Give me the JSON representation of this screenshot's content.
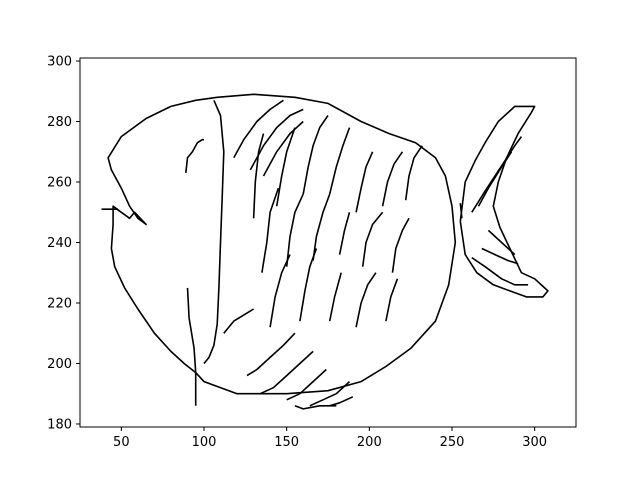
{
  "chart_data": {
    "type": "line",
    "title": "",
    "xlabel": "",
    "ylabel": "",
    "xlim": [
      25,
      325
    ],
    "ylim": [
      179,
      301
    ],
    "x_ticks": [
      50,
      100,
      150,
      200,
      250,
      300
    ],
    "y_ticks": [
      180,
      200,
      220,
      240,
      260,
      280,
      300
    ],
    "grid": false,
    "legend": "none",
    "line_color": "#000000",
    "series": [
      {
        "points": [
          [
            95,
            197
          ],
          [
            100,
            194
          ],
          [
            120,
            190
          ],
          [
            150,
            190
          ],
          [
            175,
            191
          ],
          [
            195,
            194
          ],
          [
            210,
            199
          ],
          [
            225,
            205
          ],
          [
            240,
            214
          ],
          [
            248,
            226
          ],
          [
            252,
            240
          ],
          [
            250,
            252
          ],
          [
            246,
            262
          ],
          [
            240,
            268
          ],
          [
            228,
            273
          ],
          [
            212,
            276
          ],
          [
            195,
            280
          ],
          [
            175,
            286
          ],
          [
            155,
            288
          ],
          [
            130,
            289
          ],
          [
            108,
            288
          ],
          [
            95,
            287
          ],
          [
            80,
            285
          ],
          [
            65,
            281
          ],
          [
            50,
            275
          ],
          [
            42,
            268
          ],
          [
            44,
            264
          ],
          [
            50,
            258
          ],
          [
            55,
            252
          ],
          [
            60,
            248
          ],
          [
            65,
            246
          ],
          [
            58,
            250
          ],
          [
            55,
            248
          ],
          [
            50,
            250
          ],
          [
            45,
            252
          ],
          [
            45,
            246
          ],
          [
            44,
            238
          ],
          [
            46,
            232
          ],
          [
            52,
            225
          ],
          [
            60,
            218
          ],
          [
            70,
            210
          ],
          [
            80,
            204
          ],
          [
            88,
            200
          ],
          [
            95,
            197
          ]
        ]
      },
      {
        "points": [
          [
            106,
            287
          ],
          [
            110,
            282
          ],
          [
            112,
            270
          ],
          [
            111,
            255
          ],
          [
            110,
            240
          ],
          [
            109,
            225
          ],
          [
            108,
            213
          ],
          [
            106,
            206
          ],
          [
            103,
            202
          ],
          [
            100,
            200
          ]
        ]
      },
      {
        "points": [
          [
            38,
            251
          ],
          [
            48,
            251
          ]
        ]
      },
      {
        "points": [
          [
            89,
            263
          ],
          [
            90,
            268
          ],
          [
            93,
            270
          ],
          [
            96,
            273
          ],
          [
            99,
            274
          ],
          [
            100,
            274
          ]
        ]
      },
      {
        "points": [
          [
            90,
            225
          ],
          [
            91,
            215
          ],
          [
            94,
            205
          ],
          [
            95,
            197
          ],
          [
            95,
            188
          ],
          [
            95,
            186
          ]
        ]
      },
      {
        "points": [
          [
            255,
            247
          ],
          [
            258,
            260
          ],
          [
            264,
            267
          ],
          [
            270,
            273
          ],
          [
            278,
            280
          ],
          [
            288,
            285
          ],
          [
            300,
            285
          ],
          [
            298,
            283
          ],
          [
            290,
            276
          ],
          [
            283,
            268
          ],
          [
            278,
            260
          ],
          [
            275,
            252
          ],
          [
            279,
            245
          ],
          [
            285,
            238
          ],
          [
            292,
            230
          ],
          [
            300,
            228
          ],
          [
            308,
            224
          ],
          [
            305,
            222
          ],
          [
            295,
            222
          ],
          [
            285,
            224
          ],
          [
            275,
            226
          ],
          [
            265,
            230
          ],
          [
            258,
            236
          ],
          [
            255,
            247
          ]
        ]
      },
      {
        "points": [
          [
            255,
            253
          ],
          [
            256,
            248
          ]
        ]
      },
      {
        "points": [
          [
            262,
            250
          ],
          [
            270,
            257
          ],
          [
            276,
            262
          ],
          [
            282,
            267
          ],
          [
            288,
            272
          ],
          [
            292,
            275
          ]
        ]
      },
      {
        "points": [
          [
            266,
            252
          ],
          [
            272,
            258
          ],
          [
            280,
            265
          ],
          [
            286,
            270
          ]
        ]
      },
      {
        "points": [
          [
            262,
            235
          ],
          [
            270,
            232
          ],
          [
            280,
            228
          ],
          [
            288,
            226
          ],
          [
            296,
            226
          ]
        ]
      },
      {
        "points": [
          [
            268,
            238
          ],
          [
            276,
            236
          ],
          [
            284,
            234
          ],
          [
            290,
            233
          ]
        ]
      },
      {
        "points": [
          [
            272,
            244
          ],
          [
            280,
            240
          ],
          [
            288,
            236
          ]
        ]
      },
      {
        "points": [
          [
            118,
            268
          ],
          [
            124,
            274
          ],
          [
            132,
            280
          ],
          [
            140,
            284
          ],
          [
            148,
            287
          ]
        ]
      },
      {
        "points": [
          [
            128,
            264
          ],
          [
            136,
            272
          ],
          [
            144,
            278
          ],
          [
            152,
            282
          ],
          [
            160,
            284
          ]
        ]
      },
      {
        "points": [
          [
            136,
            262
          ],
          [
            144,
            270
          ],
          [
            152,
            276
          ],
          [
            160,
            280
          ]
        ]
      },
      {
        "points": [
          [
            130,
            248
          ],
          [
            131,
            260
          ],
          [
            133,
            270
          ],
          [
            136,
            276
          ]
        ]
      },
      {
        "points": [
          [
            144,
            252
          ],
          [
            147,
            262
          ],
          [
            150,
            270
          ],
          [
            155,
            278
          ]
        ]
      },
      {
        "points": [
          [
            160,
            256
          ],
          [
            163,
            265
          ],
          [
            166,
            272
          ],
          [
            170,
            278
          ],
          [
            175,
            282
          ]
        ]
      },
      {
        "points": [
          [
            176,
            256
          ],
          [
            180,
            265
          ],
          [
            184,
            272
          ],
          [
            188,
            278
          ]
        ]
      },
      {
        "points": [
          [
            192,
            250
          ],
          [
            195,
            258
          ],
          [
            198,
            265
          ],
          [
            202,
            270
          ]
        ]
      },
      {
        "points": [
          [
            208,
            252
          ],
          [
            211,
            260
          ],
          [
            215,
            266
          ],
          [
            220,
            270
          ]
        ]
      },
      {
        "points": [
          [
            222,
            254
          ],
          [
            224,
            262
          ],
          [
            227,
            268
          ],
          [
            232,
            272
          ]
        ]
      },
      {
        "points": [
          [
            135,
            230
          ],
          [
            138,
            240
          ],
          [
            140,
            250
          ],
          [
            145,
            258
          ]
        ]
      },
      {
        "points": [
          [
            150,
            232
          ],
          [
            152,
            242
          ],
          [
            155,
            250
          ],
          [
            160,
            256
          ]
        ]
      },
      {
        "points": [
          [
            166,
            234
          ],
          [
            168,
            242
          ],
          [
            172,
            250
          ],
          [
            176,
            256
          ]
        ]
      },
      {
        "points": [
          [
            182,
            236
          ],
          [
            185,
            244
          ],
          [
            188,
            250
          ]
        ]
      },
      {
        "points": [
          [
            196,
            232
          ],
          [
            198,
            240
          ],
          [
            202,
            246
          ],
          [
            208,
            250
          ]
        ]
      },
      {
        "points": [
          [
            214,
            230
          ],
          [
            216,
            238
          ],
          [
            220,
            244
          ],
          [
            224,
            248
          ]
        ]
      },
      {
        "points": [
          [
            140,
            212
          ],
          [
            143,
            222
          ],
          [
            147,
            230
          ],
          [
            152,
            236
          ]
        ]
      },
      {
        "points": [
          [
            158,
            214
          ],
          [
            161,
            224
          ],
          [
            164,
            232
          ],
          [
            168,
            238
          ]
        ]
      },
      {
        "points": [
          [
            176,
            214
          ],
          [
            179,
            222
          ],
          [
            183,
            230
          ]
        ]
      },
      {
        "points": [
          [
            192,
            212
          ],
          [
            195,
            220
          ],
          [
            199,
            226
          ],
          [
            204,
            230
          ]
        ]
      },
      {
        "points": [
          [
            210,
            214
          ],
          [
            213,
            222
          ],
          [
            217,
            228
          ]
        ]
      },
      {
        "points": [
          [
            126,
            196
          ],
          [
            132,
            198
          ],
          [
            140,
            202
          ],
          [
            148,
            206
          ],
          [
            155,
            210
          ]
        ]
      },
      {
        "points": [
          [
            134,
            190
          ],
          [
            142,
            192
          ],
          [
            150,
            196
          ],
          [
            158,
            200
          ],
          [
            166,
            204
          ]
        ]
      },
      {
        "points": [
          [
            150,
            188
          ],
          [
            158,
            190
          ],
          [
            166,
            194
          ],
          [
            174,
            198
          ]
        ]
      },
      {
        "points": [
          [
            164,
            186
          ],
          [
            172,
            188
          ],
          [
            180,
            190
          ],
          [
            188,
            194
          ]
        ]
      },
      {
        "points": [
          [
            176,
            186
          ],
          [
            182,
            187
          ],
          [
            190,
            189
          ]
        ]
      },
      {
        "points": [
          [
            155,
            186
          ],
          [
            160,
            185
          ],
          [
            170,
            186
          ],
          [
            180,
            186
          ]
        ]
      },
      {
        "points": [
          [
            112,
            210
          ],
          [
            118,
            214
          ],
          [
            124,
            216
          ],
          [
            130,
            218
          ]
        ]
      }
    ]
  }
}
